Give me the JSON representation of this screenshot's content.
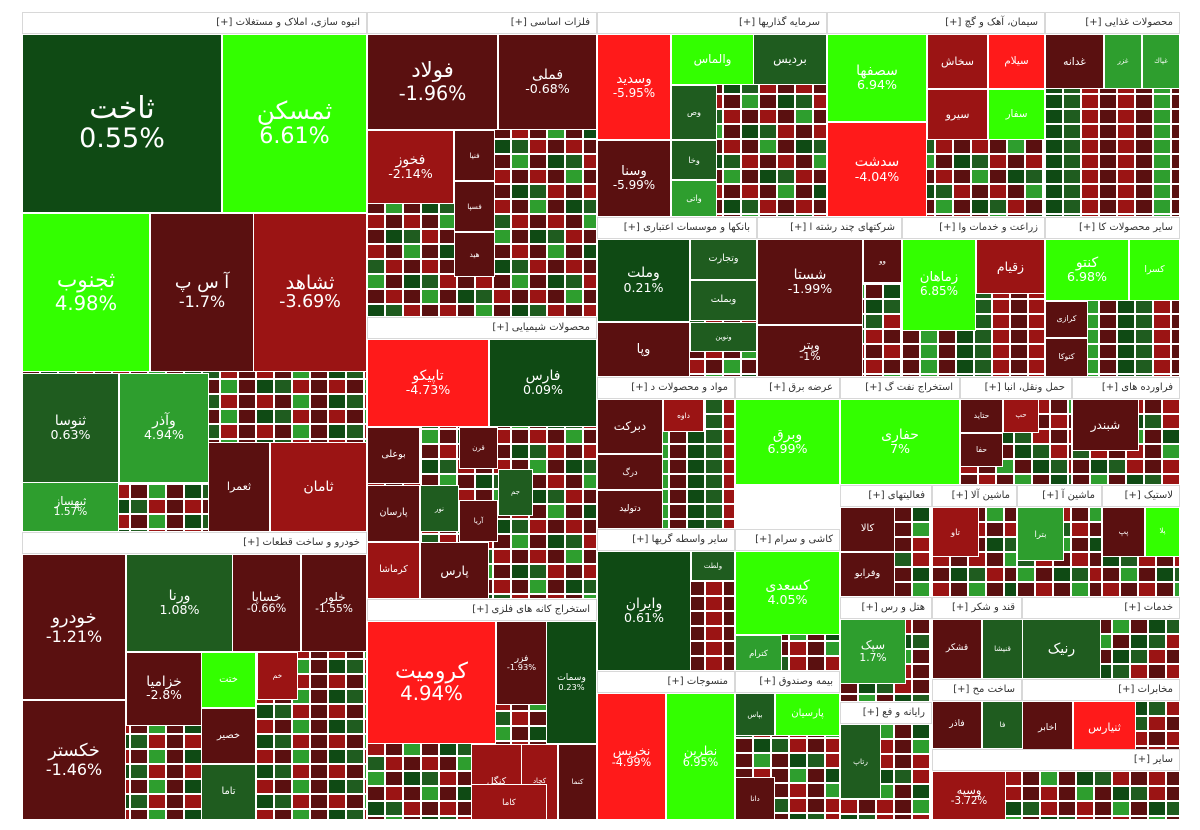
{
  "colors": {
    "strong_green": "#33ff00",
    "green": "#2e9e2e",
    "dark_green": "#1f5c1f",
    "very_dark_green": "#0f4a14",
    "dark_red": "#5a1010",
    "red": "#9b1414",
    "bright_red": "#ff1a1a",
    "header_bg": "#ffffff"
  },
  "chart_data": {
    "type": "treemap",
    "sectors": [
      {
        "name": "انبوه سازی، املاک و مستغلات [+]",
        "tiles": [
          {
            "s": "ثاخت",
            "v": "0.55%",
            "c": "very_dark_green"
          },
          {
            "s": "ثمسکن",
            "v": "6.61%",
            "c": "strong_green"
          },
          {
            "s": "ثجنوب",
            "v": "4.98%",
            "c": "strong_green"
          },
          {
            "s": "آ س پ",
            "v": "-1.7%",
            "c": "dark_red"
          },
          {
            "s": "ثشاهد",
            "v": "-3.69%",
            "c": "red"
          },
          {
            "s": "ثنوسا",
            "v": "0.63%",
            "c": "dark_green"
          },
          {
            "s": "وآذر",
            "v": "4.94%",
            "c": "green"
          },
          {
            "s": "ثبهساز",
            "v": "1.57%",
            "c": "green"
          },
          {
            "s": "ثعمرا",
            "v": "",
            "c": "dark_red"
          },
          {
            "s": "ثامان",
            "v": "",
            "c": "red"
          }
        ]
      },
      {
        "name": "فلزات اساسی [+]",
        "tiles": [
          {
            "s": "فولاد",
            "v": "-1.96%",
            "c": "dark_red"
          },
          {
            "s": "فملی",
            "v": "-0.68%",
            "c": "dark_red"
          },
          {
            "s": "فخوز",
            "v": "-2.14%",
            "c": "red"
          },
          {
            "s": "فنیا",
            "v": "",
            "c": "dark_red"
          },
          {
            "s": "فسپا",
            "v": "",
            "c": "dark_red"
          },
          {
            "s": "هید",
            "v": "",
            "c": "dark_red"
          }
        ]
      },
      {
        "name": "محصولات شیمیایی [+]",
        "tiles": [
          {
            "s": "تاپیکو",
            "v": "-4.73%",
            "c": "bright_red"
          },
          {
            "s": "فارس",
            "v": "0.09%",
            "c": "very_dark_green"
          },
          {
            "s": "بوعلی",
            "v": "",
            "c": "dark_red"
          },
          {
            "s": "پارسان",
            "v": "",
            "c": "dark_red"
          },
          {
            "s": "کرماشا",
            "v": "",
            "c": "red"
          },
          {
            "s": "قرن",
            "v": "",
            "c": "dark_red"
          },
          {
            "s": "آریا",
            "v": "",
            "c": "dark_red"
          },
          {
            "s": "نور",
            "v": "",
            "c": "dark_green"
          },
          {
            "s": "جم",
            "v": "",
            "c": "dark_green"
          },
          {
            "s": "پارس",
            "v": "",
            "c": "dark_red"
          }
        ]
      },
      {
        "name": "استخراج کانه های فلزی [+]",
        "tiles": [
          {
            "s": "کرومیت",
            "v": "4.94%",
            "c": "bright_red"
          },
          {
            "s": "وسمات",
            "v": "0.23%",
            "c": "very_dark_green"
          },
          {
            "s": "فزر",
            "v": "-1.93%",
            "c": "dark_red"
          },
          {
            "s": "کنگل",
            "v": "",
            "c": "red"
          },
          {
            "s": "کچاد",
            "v": "",
            "c": "red"
          },
          {
            "s": "کاما",
            "v": "",
            "c": "red"
          },
          {
            "s": "کنما",
            "v": "",
            "c": "dark_red"
          }
        ]
      },
      {
        "name": "خودرو و ساخت قطعات [+]",
        "tiles": [
          {
            "s": "خودرو",
            "v": "-1.21%",
            "c": "dark_red"
          },
          {
            "s": "ورنا",
            "v": "1.08%",
            "c": "dark_green"
          },
          {
            "s": "خساپا",
            "v": "-0.66%",
            "c": "dark_red"
          },
          {
            "s": "خلور",
            "v": "-1.55%",
            "c": "dark_red"
          },
          {
            "s": "خکستر",
            "v": "-1.46%",
            "c": "dark_red"
          },
          {
            "s": "خزامیا",
            "v": "-2.8%",
            "c": "dark_red"
          },
          {
            "s": "ختت",
            "v": "",
            "c": "strong_green"
          },
          {
            "s": "خصیر",
            "v": "",
            "c": "dark_red"
          },
          {
            "s": "تاما",
            "v": "",
            "c": "dark_green"
          },
          {
            "s": "خم",
            "v": "",
            "c": "red"
          }
        ]
      },
      {
        "name": "سرمایه گذاریها [+]",
        "tiles": [
          {
            "s": "وسدید",
            "v": "-5.95%",
            "c": "bright_red"
          },
          {
            "s": "والماس",
            "v": "",
            "c": "strong_green"
          },
          {
            "s": "بردیس",
            "v": "",
            "c": "dark_green"
          },
          {
            "s": "وسنا",
            "v": "-5.99%",
            "c": "dark_red"
          },
          {
            "s": "وخا",
            "v": "",
            "c": "dark_green"
          },
          {
            "s": "واتی",
            "v": "",
            "c": "green"
          },
          {
            "s": "وص",
            "v": "",
            "c": "dark_green"
          }
        ]
      },
      {
        "name": "سیمان، آهک و گچ [+]",
        "tiles": [
          {
            "s": "سصفها",
            "v": "6.94%",
            "c": "strong_green"
          },
          {
            "s": "سخاش",
            "v": "",
            "c": "red"
          },
          {
            "s": "سیلام",
            "v": "",
            "c": "bright_red"
          },
          {
            "s": "سیرو",
            "v": "",
            "c": "red"
          },
          {
            "s": "سفار",
            "v": "",
            "c": "strong_green"
          },
          {
            "s": "سدشت",
            "v": "-4.04%",
            "c": "bright_red"
          }
        ]
      },
      {
        "name": "محصولات غذایی [+]",
        "tiles": [
          {
            "s": "غدانه",
            "v": "",
            "c": "dark_red"
          },
          {
            "s": "غزر",
            "v": "",
            "c": "green"
          },
          {
            "s": "غپاك",
            "v": "",
            "c": "green"
          }
        ]
      },
      {
        "name": "بانکها و موسسات اعتباری [+]",
        "tiles": [
          {
            "s": "وملت",
            "v": "0.21%",
            "c": "very_dark_green"
          },
          {
            "s": "وتجارت",
            "v": "",
            "c": "dark_green"
          },
          {
            "s": "وبملت",
            "v": "",
            "c": "dark_green"
          },
          {
            "s": "ونوین",
            "v": "",
            "c": "dark_green"
          },
          {
            "s": "وپا",
            "v": "",
            "c": "dark_red"
          }
        ]
      },
      {
        "name": "شرکتهای چند رشته ا [+]",
        "tiles": [
          {
            "s": "شستا",
            "v": "-1.99%",
            "c": "dark_red"
          },
          {
            "s": "وپتر",
            "v": "-1%",
            "c": "dark_red"
          },
          {
            "s": "وو",
            "v": "",
            "c": "dark_red"
          }
        ]
      },
      {
        "name": "زراعت و خدمات وا [+]",
        "tiles": [
          {
            "s": "زقیام",
            "v": "",
            "c": "red"
          },
          {
            "s": "زماهان",
            "v": "6.85%",
            "c": "strong_green"
          }
        ]
      },
      {
        "name": "سایر محصولات کا [+]",
        "tiles": [
          {
            "s": "کسرا",
            "v": "",
            "c": "strong_green"
          },
          {
            "s": "کنتو",
            "v": "6.98%",
            "c": "strong_green"
          },
          {
            "s": "کرازی",
            "v": "",
            "c": "dark_red"
          },
          {
            "s": "کتوکا",
            "v": "",
            "c": "dark_red"
          }
        ]
      },
      {
        "name": "مواد و محصولات د [+]",
        "tiles": [
          {
            "s": "دبرکت",
            "v": "",
            "c": "dark_red"
          },
          {
            "s": "داوه",
            "v": "",
            "c": "red"
          },
          {
            "s": "درگ",
            "v": "",
            "c": "dark_red"
          },
          {
            "s": "دتولید",
            "v": "",
            "c": "dark_red"
          }
        ]
      },
      {
        "name": "عرضه برق [+]",
        "tiles": [
          {
            "s": "وبرق",
            "v": "6.99%",
            "c": "strong_green"
          }
        ]
      },
      {
        "name": "استخراج نفت گ [+]",
        "tiles": [
          {
            "s": "حفاری",
            "v": "7%",
            "c": "strong_green"
          }
        ]
      },
      {
        "name": "حمل ونقل، انبا [+]",
        "tiles": [
          {
            "s": "حتاید",
            "v": "",
            "c": "dark_red"
          },
          {
            "s": "حپ",
            "v": "",
            "c": "red"
          },
          {
            "s": "حفا",
            "v": "",
            "c": "dark_red"
          }
        ]
      },
      {
        "name": "فراورده های [+]",
        "tiles": [
          {
            "s": "شبندر",
            "v": "",
            "c": "dark_red"
          }
        ]
      },
      {
        "name": "سایر واسطه گریها [+]",
        "tiles": [
          {
            "s": "ولطت",
            "v": "",
            "c": "dark_green"
          },
          {
            "s": "وایران",
            "v": "0.61%",
            "c": "very_dark_green"
          }
        ]
      },
      {
        "name": "کاشی و سرام [+]",
        "tiles": [
          {
            "s": "کسعدی",
            "v": "4.05%",
            "c": "strong_green"
          },
          {
            "s": "کترام",
            "v": "",
            "c": "green"
          }
        ]
      },
      {
        "name": "فعالیتهای [+]",
        "tiles": [
          {
            "s": "کالا",
            "v": "",
            "c": "dark_red"
          },
          {
            "s": "وفرابو",
            "v": "",
            "c": "dark_red"
          }
        ]
      },
      {
        "name": "ماشین آلا [+]",
        "tiles": [
          {
            "s": "تاو",
            "v": "",
            "c": "red"
          }
        ]
      },
      {
        "name": "ماشین آ [+]",
        "tiles": [
          {
            "s": "بترا",
            "v": "",
            "c": "green"
          }
        ]
      },
      {
        "name": "لاستیک [+]",
        "tiles": [
          {
            "s": "پلا",
            "v": "",
            "c": "strong_green"
          },
          {
            "s": "پپ",
            "v": "",
            "c": "dark_red"
          }
        ]
      },
      {
        "name": "قند و شکر [+]",
        "tiles": [
          {
            "s": "قشکر",
            "v": "",
            "c": "dark_red"
          },
          {
            "s": "قنیشا",
            "v": "",
            "c": "dark_green"
          }
        ]
      },
      {
        "name": "هتل و رس [+]",
        "tiles": [
          {
            "s": "سپک",
            "v": "1.7%",
            "c": "green"
          }
        ]
      },
      {
        "name": "منسوجات [+]",
        "tiles": [
          {
            "s": "نخریس",
            "v": "-4.99%",
            "c": "bright_red"
          },
          {
            "s": "نطرین",
            "v": "6.95%",
            "c": "strong_green"
          }
        ]
      },
      {
        "name": "بیمه وصندوق [+]",
        "tiles": [
          {
            "s": "بپاس",
            "v": "",
            "c": "dark_green"
          },
          {
            "s": "پارسیان",
            "v": "",
            "c": "strong_green"
          },
          {
            "s": "دانا",
            "v": "",
            "c": "dark_red"
          }
        ]
      },
      {
        "name": "رایانه و فع [+]",
        "tiles": [
          {
            "s": "رتاپ",
            "v": "",
            "c": "dark_green"
          }
        ]
      },
      {
        "name": "ساخت مح [+]",
        "tiles": [
          {
            "s": "فاذر",
            "v": "",
            "c": "dark_red"
          },
          {
            "s": "فا",
            "v": "",
            "c": "dark_green"
          }
        ]
      },
      {
        "name": "مخابرات [+]",
        "tiles": [
          {
            "s": "اخابر",
            "v": "",
            "c": "dark_red"
          },
          {
            "s": "ثنیارس",
            "v": "",
            "c": "bright_red"
          }
        ]
      },
      {
        "name": "خدمات [+]",
        "tiles": [
          {
            "s": "رنیک",
            "v": "",
            "c": "dark_green"
          }
        ]
      },
      {
        "name": "سایر [+]",
        "tiles": [
          {
            "s": "وسپه",
            "v": "-3.72%",
            "c": "red"
          }
        ]
      }
    ]
  }
}
